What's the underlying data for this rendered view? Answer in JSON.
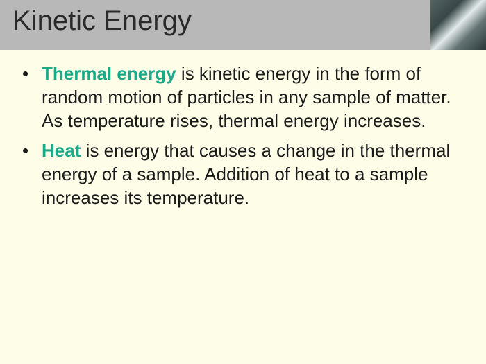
{
  "slide": {
    "title": "Kinetic Energy",
    "title_color": "#2a2a2a",
    "title_fontsize": 40,
    "header_background": "#b8b8b8",
    "body_background": "#fdfde8",
    "highlight_color": "#1aaa8a",
    "text_color": "#1a1a1a",
    "body_fontsize": 26,
    "bullets": [
      {
        "highlight": "Thermal energy",
        "text": " is kinetic energy in the form of random motion of particles in any sample of matter.  As temperature rises, thermal energy increases."
      },
      {
        "highlight": "Heat",
        "text": " is energy that causes a change in the thermal energy of a sample.  Addition of heat to a sample increases its temperature."
      }
    ]
  }
}
